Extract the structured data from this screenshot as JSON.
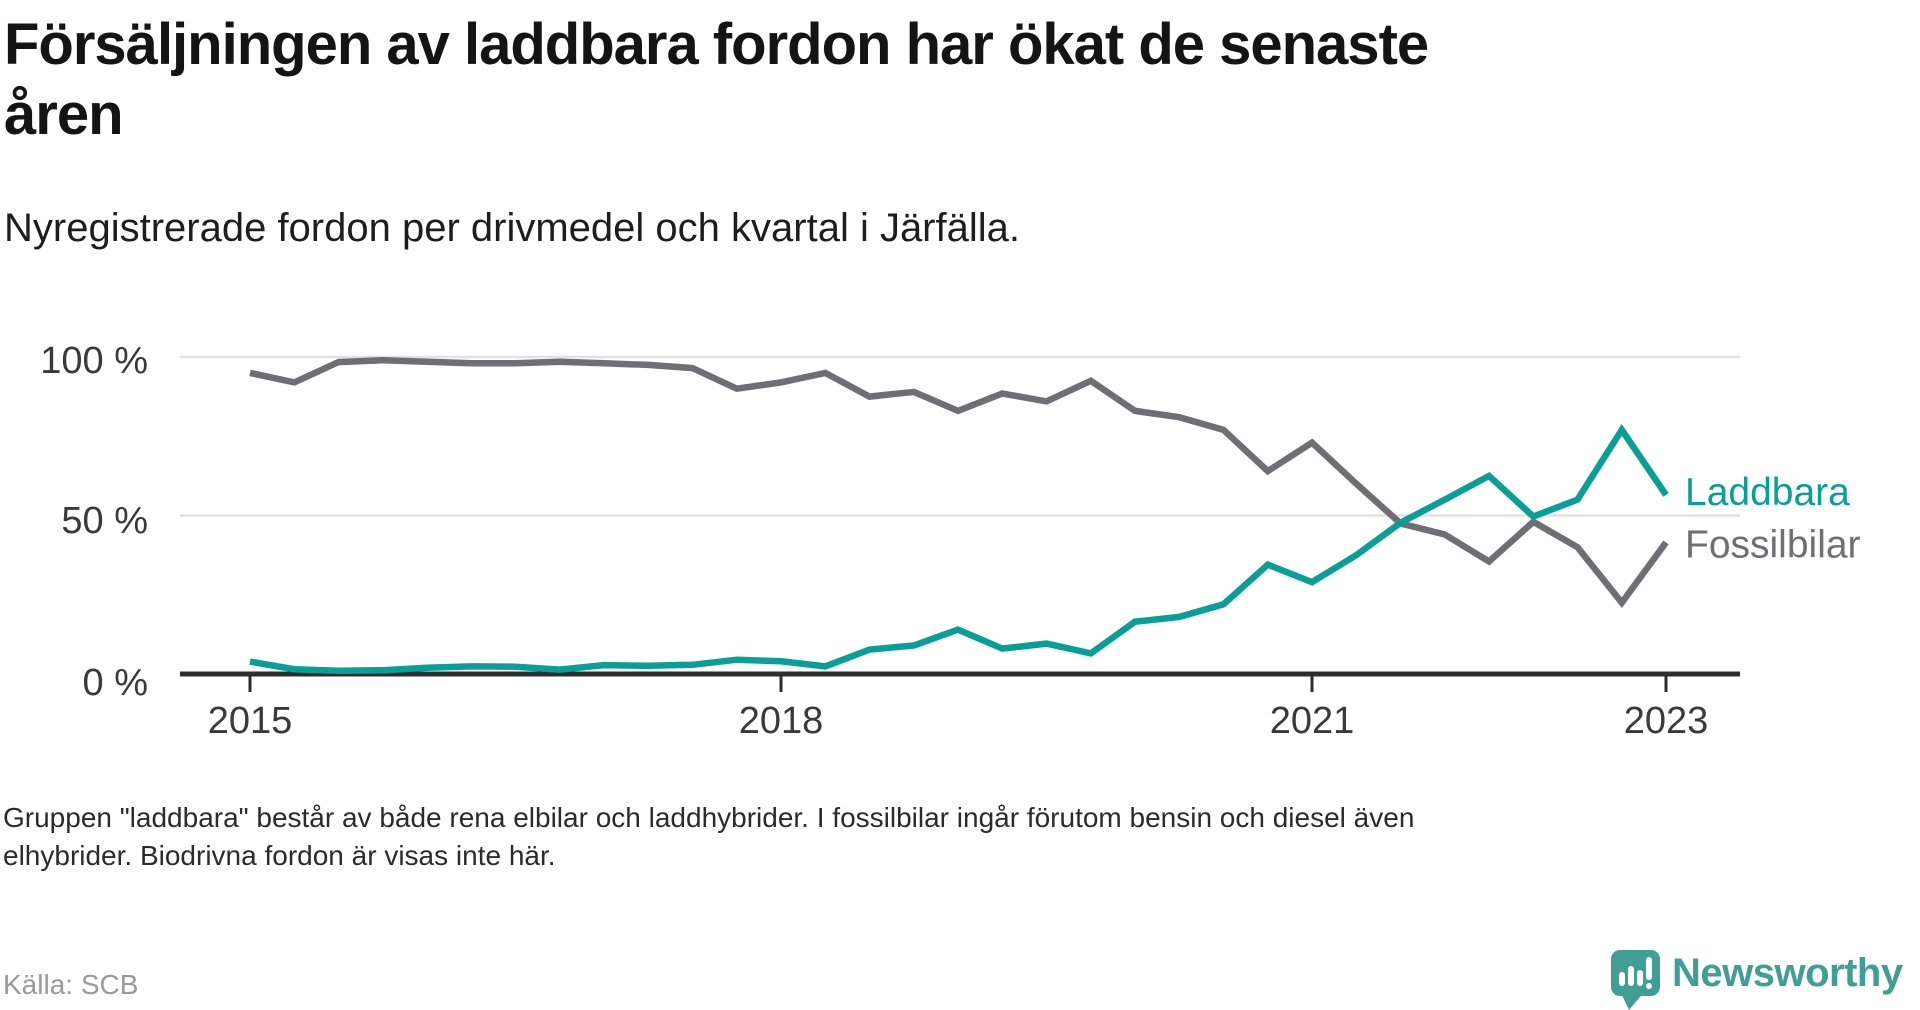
{
  "title": "Försäljningen av laddbara fordon har ökat de senaste åren",
  "title_lines": [
    "Försäljningen av laddbara fordon har ökat de senaste",
    "åren"
  ],
  "subtitle": "Nyregistrerade fordon per drivmedel och kvartal i Järfälla.",
  "footnote_lines": [
    "Gruppen \"laddbara\" består av både rena elbilar och laddhybrider. I fossilbilar ingår förutom bensin och diesel även",
    "elhybrider. Biodrivna fordon är visas inte här."
  ],
  "source": "Källa: SCB",
  "brand": {
    "name": "Newsworthy",
    "color": "#3f9e96",
    "icon": "map-pin-bar-chart-icon"
  },
  "colors": {
    "laddbara": "#0a9f96",
    "fossilbilar": "#6f6e74",
    "grid": "#e2e2e2",
    "axis": "#2d2d2d",
    "tick_label": "#3a3a3a",
    "title": "#141414",
    "subtitle": "#1d1d1d",
    "footnote": "#2b2b2b",
    "source": "#9a9a9a"
  },
  "chart_data": {
    "type": "line",
    "title": "Försäljningen av laddbara fordon har ökat de senaste åren",
    "subtitle": "Nyregistrerade fordon per drivmedel och kvartal i Järfälla.",
    "x_unit": "quarter",
    "x_quarters": [
      "2015 Q1",
      "2015 Q2",
      "2015 Q3",
      "2015 Q4",
      "2016 Q1",
      "2016 Q2",
      "2016 Q3",
      "2016 Q4",
      "2017 Q1",
      "2017 Q2",
      "2017 Q3",
      "2017 Q4",
      "2018 Q1",
      "2018 Q2",
      "2018 Q3",
      "2018 Q4",
      "2019 Q1",
      "2019 Q2",
      "2019 Q3",
      "2019 Q4",
      "2020 Q1",
      "2020 Q2",
      "2020 Q3",
      "2020 Q4",
      "2021 Q1",
      "2021 Q2",
      "2021 Q3",
      "2021 Q4",
      "2022 Q1",
      "2022 Q2",
      "2022 Q3",
      "2022 Q4",
      "2023 Q1"
    ],
    "x_tick_labels": [
      "2015",
      "2018",
      "2021",
      "2023"
    ],
    "x_tick_indices": [
      0,
      12,
      24,
      32
    ],
    "y_tick_labels": [
      "0 %",
      "50 %",
      "100 %"
    ],
    "y_tick_values": [
      0,
      50,
      100
    ],
    "ylim": [
      0,
      100
    ],
    "grid": "horizontal",
    "legend_position": "right-of-line-ends",
    "series": [
      {
        "name": "Fossilbilar",
        "color": "#6f6e74",
        "values": [
          95,
          92,
          98.4,
          99,
          98.5,
          98,
          98,
          98.5,
          98,
          97.5,
          96.5,
          90,
          92,
          95,
          87.5,
          89,
          83,
          88.5,
          86,
          92.5,
          83,
          81,
          77,
          64,
          73,
          60,
          47.5,
          44,
          35.5,
          48,
          40,
          22.5,
          41.5
        ]
      },
      {
        "name": "Laddbara",
        "color": "#0a9f96",
        "values": [
          3.9,
          1.5,
          1,
          1.2,
          2,
          2.4,
          2.3,
          1.4,
          2.8,
          2.6,
          2.9,
          4.5,
          4,
          2.4,
          7.7,
          9,
          14,
          8,
          9.6,
          6.5,
          16.5,
          18,
          22,
          34.5,
          29,
          37.5,
          47.7,
          55,
          62.5,
          49.7,
          55,
          77,
          56.5
        ]
      }
    ]
  }
}
